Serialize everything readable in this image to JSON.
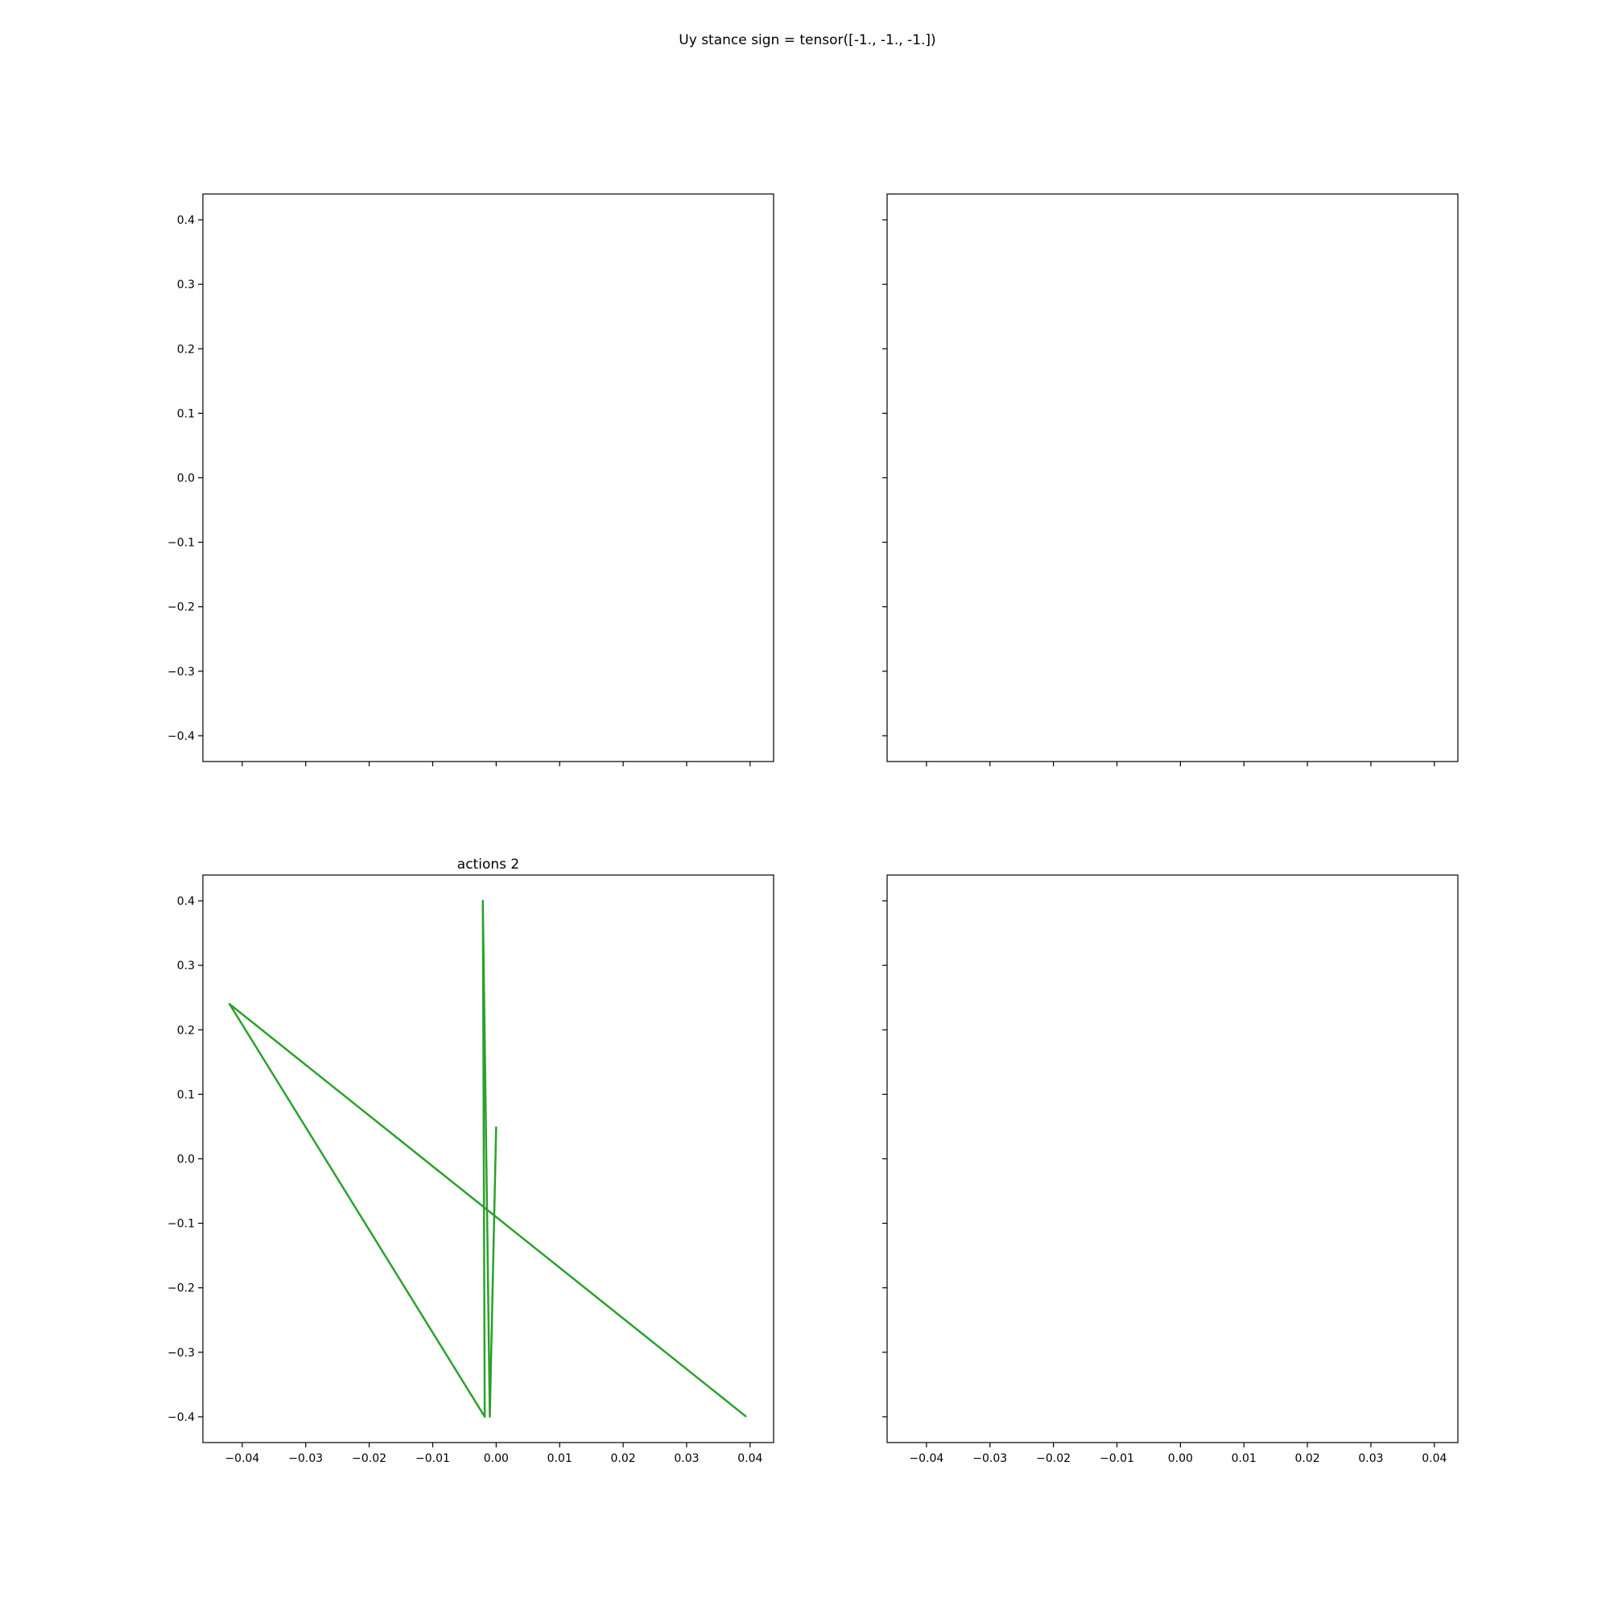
{
  "suptitle": "Uy stance sign = tensor([-1., -1., -1.])",
  "colors": {
    "series": "#2ca02c",
    "axes": "#000000",
    "background": "#ffffff"
  },
  "chart_data": [
    {
      "type": "line",
      "panel": "top-left",
      "title": "",
      "xlim": [
        -0.0462,
        0.0437
      ],
      "ylim": [
        -0.44,
        0.44
      ],
      "x_ticks": [
        -0.04,
        -0.03,
        -0.02,
        -0.01,
        0.0,
        0.01,
        0.02,
        0.03,
        0.04
      ],
      "x_tick_labels": [],
      "y_ticks": [
        0.4,
        0.3,
        0.2,
        0.1,
        0.0,
        -0.1,
        -0.2,
        -0.3,
        -0.4
      ],
      "y_tick_labels": [
        "0.4",
        "0.3",
        "0.2",
        "0.1",
        "0.0",
        "−0.1",
        "−0.2",
        "−0.3",
        "−0.4"
      ],
      "series": []
    },
    {
      "type": "line",
      "panel": "top-right",
      "title": "",
      "xlim": [
        -0.0462,
        0.0437
      ],
      "ylim": [
        -0.44,
        0.44
      ],
      "x_ticks": [
        -0.04,
        -0.03,
        -0.02,
        -0.01,
        0.0,
        0.01,
        0.02,
        0.03,
        0.04
      ],
      "x_tick_labels": [],
      "y_ticks": [
        0.4,
        0.3,
        0.2,
        0.1,
        0.0,
        -0.1,
        -0.2,
        -0.3,
        -0.4
      ],
      "y_tick_labels": [],
      "series": []
    },
    {
      "type": "line",
      "panel": "bottom-left",
      "title": "actions 2",
      "xlim": [
        -0.0462,
        0.0437
      ],
      "ylim": [
        -0.44,
        0.44
      ],
      "x_ticks": [
        -0.04,
        -0.03,
        -0.02,
        -0.01,
        0.0,
        0.01,
        0.02,
        0.03,
        0.04
      ],
      "x_tick_labels": [
        "−0.04",
        "−0.03",
        "−0.02",
        "−0.01",
        "0.00",
        "0.01",
        "0.02",
        "0.03",
        "0.04"
      ],
      "y_ticks": [
        0.4,
        0.3,
        0.2,
        0.1,
        0.0,
        -0.1,
        -0.2,
        -0.3,
        -0.4
      ],
      "y_tick_labels": [
        "0.4",
        "0.3",
        "0.2",
        "0.1",
        "0.0",
        "−0.1",
        "−0.2",
        "−0.3",
        "−0.4"
      ],
      "series": [
        {
          "color": "#2ca02c",
          "x": [
            0.0,
            -0.001,
            -0.0021,
            -0.0018,
            -0.042,
            0.0394
          ],
          "y": [
            0.05,
            -0.4,
            0.4,
            -0.4,
            0.24,
            -0.4
          ]
        }
      ]
    },
    {
      "type": "line",
      "panel": "bottom-right",
      "title": "",
      "xlim": [
        -0.0462,
        0.0437
      ],
      "ylim": [
        -0.44,
        0.44
      ],
      "x_ticks": [
        -0.04,
        -0.03,
        -0.02,
        -0.01,
        0.0,
        0.01,
        0.02,
        0.03,
        0.04
      ],
      "x_tick_labels": [
        "−0.04",
        "−0.03",
        "−0.02",
        "−0.01",
        "0.00",
        "0.01",
        "0.02",
        "0.03",
        "0.04"
      ],
      "y_ticks": [
        0.4,
        0.3,
        0.2,
        0.1,
        0.0,
        -0.1,
        -0.2,
        -0.3,
        -0.4
      ],
      "y_tick_labels": [],
      "series": []
    }
  ]
}
